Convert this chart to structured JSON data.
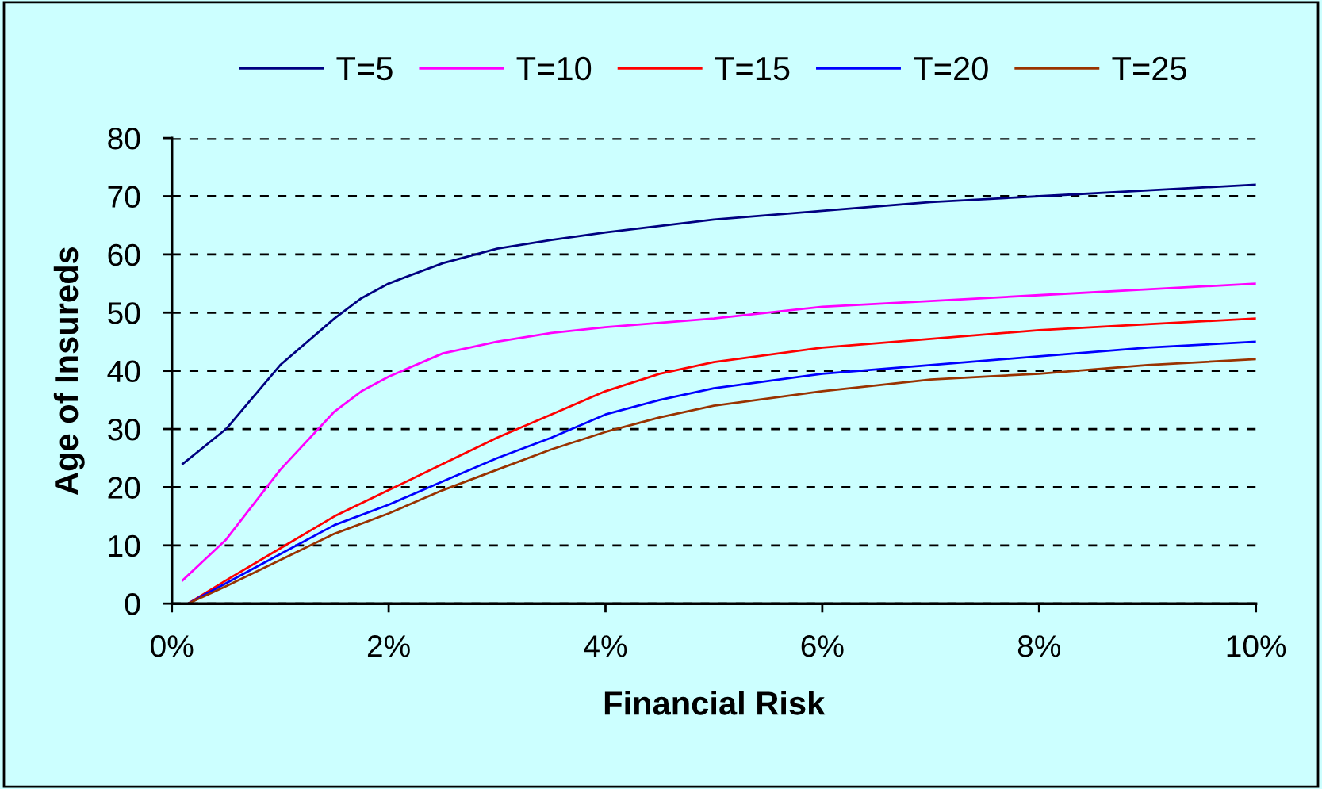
{
  "chart_data": {
    "type": "line",
    "xlabel": "Financial Risk",
    "ylabel": "Age of Insureds",
    "xlim": [
      0,
      10
    ],
    "ylim": [
      0,
      80
    ],
    "xticks": [
      {
        "value": 0,
        "label": "0%"
      },
      {
        "value": 2,
        "label": "2%"
      },
      {
        "value": 4,
        "label": "4%"
      },
      {
        "value": 6,
        "label": "6%"
      },
      {
        "value": 8,
        "label": "8%"
      },
      {
        "value": 10,
        "label": "10%"
      }
    ],
    "yticks": [
      0,
      10,
      20,
      30,
      40,
      50,
      60,
      70,
      80
    ],
    "grid": "y",
    "legend": "top",
    "line_style": "solid",
    "series": [
      {
        "name": "T=5",
        "color": "#000080",
        "x": [
          0.1,
          0.5,
          1,
          1.5,
          1.75,
          2,
          2.5,
          3,
          3.5,
          4,
          5,
          6,
          7,
          8,
          9,
          10
        ],
        "values": [
          24,
          30,
          41,
          49,
          52.5,
          55,
          58.5,
          61,
          62.5,
          63.8,
          66,
          67.5,
          69,
          70,
          71,
          72
        ]
      },
      {
        "name": "T=10",
        "color": "#ff00ff",
        "x": [
          0.1,
          0.5,
          1,
          1.5,
          1.75,
          2,
          2.5,
          3,
          3.5,
          4,
          5,
          6,
          7,
          8,
          9,
          10
        ],
        "values": [
          4,
          11,
          23,
          33,
          36.5,
          39,
          43,
          45,
          46.5,
          47.5,
          49,
          51,
          52,
          53,
          54,
          55
        ]
      },
      {
        "name": "T=15",
        "color": "#ff0000",
        "x": [
          0.15,
          0.5,
          1,
          1.5,
          2,
          2.5,
          3,
          3.5,
          4,
          4.5,
          5,
          6,
          7,
          8,
          9,
          10
        ],
        "values": [
          0,
          4,
          9.5,
          15,
          19.5,
          24,
          28.5,
          32.5,
          36.5,
          39.5,
          41.5,
          44,
          45.5,
          47,
          48,
          49
        ]
      },
      {
        "name": "T=20",
        "color": "#0000ff",
        "x": [
          0.15,
          0.5,
          1,
          1.5,
          2,
          2.5,
          3,
          3.5,
          4,
          4.5,
          5,
          6,
          7,
          8,
          9,
          10
        ],
        "values": [
          0,
          3.5,
          8.5,
          13.5,
          17,
          21,
          25,
          28.5,
          32.5,
          35,
          37,
          39.5,
          41,
          42.5,
          44,
          45
        ]
      },
      {
        "name": "T=25",
        "color": "#993300",
        "x": [
          0.15,
          0.5,
          1,
          1.5,
          2,
          2.5,
          3,
          3.5,
          4,
          4.5,
          5,
          6,
          7,
          8,
          9,
          10
        ],
        "values": [
          0,
          3,
          7.5,
          12,
          15.5,
          19.5,
          23,
          26.5,
          29.5,
          32,
          34,
          36.5,
          38.5,
          39.5,
          41,
          42
        ]
      }
    ]
  }
}
